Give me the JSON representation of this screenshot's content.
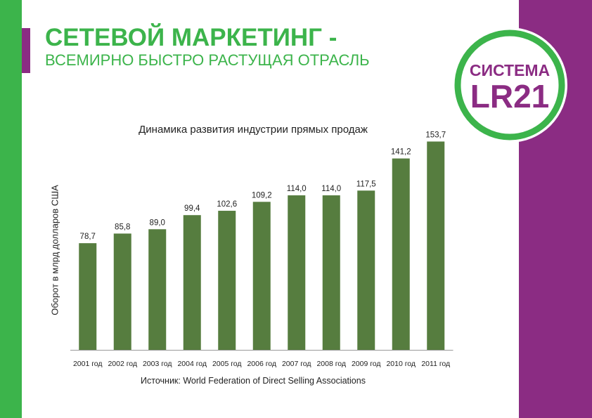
{
  "header": {
    "title_line1": "СЕТЕВОЙ МАРКЕТИНГ -",
    "title_line2": "ВСЕМИРНО БЫСТРО РАСТУЩАЯ ОТРАСЛЬ"
  },
  "logo": {
    "text_top": "СИСТЕМА",
    "text_bottom": "LR21"
  },
  "colors": {
    "green": "#3cb44b",
    "purple": "#8b2c83",
    "bar": "#567d3f"
  },
  "chart_data": {
    "type": "bar",
    "title": "Динамика развития индустрии прямых продаж",
    "ylabel": "Оборот в млрд долларов США",
    "xlabel": "",
    "categories": [
      "2001 год",
      "2002 год",
      "2003 год",
      "2004 год",
      "2005 год",
      "2006 год",
      "2007 год",
      "2008 год",
      "2009 год",
      "2010 год",
      "2011 год"
    ],
    "values": [
      78.7,
      85.8,
      89.0,
      99.4,
      102.6,
      109.2,
      114.0,
      114.0,
      117.5,
      141.2,
      153.7
    ],
    "value_labels": [
      "78,7",
      "85,8",
      "89,0",
      "99,4",
      "102,6",
      "109,2",
      "114,0",
      "114,0",
      "117,5",
      "141,2",
      "153,7"
    ],
    "ylim": [
      0,
      170
    ],
    "grid": false,
    "legend": "none",
    "source": "Источник: World Federation of Direct Selling Associations"
  }
}
